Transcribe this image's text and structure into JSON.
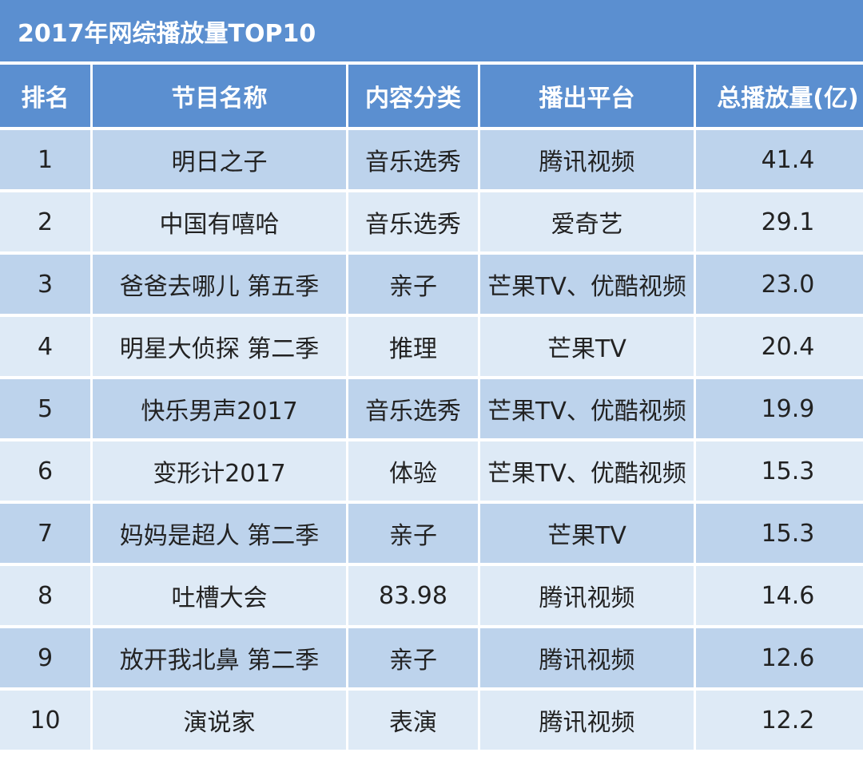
{
  "title": "2017年网综播放量TOP10",
  "chart_data": {
    "type": "table",
    "title": "2017年网综播放量TOP10",
    "columns": [
      "排名",
      "节目名称",
      "内容分类",
      "播出平台",
      "总播放量(亿)"
    ],
    "rows": [
      [
        "1",
        "明日之子",
        "音乐选秀",
        "腾讯视频",
        "41.4"
      ],
      [
        "2",
        "中国有嘻哈",
        "音乐选秀",
        "爱奇艺",
        "29.1"
      ],
      [
        "3",
        "爸爸去哪儿 第五季",
        "亲子",
        "芒果TV、优酷视频",
        "23.0"
      ],
      [
        "4",
        "明星大侦探 第二季",
        "推理",
        "芒果TV",
        "20.4"
      ],
      [
        "5",
        "快乐男声2017",
        "音乐选秀",
        "芒果TV、优酷视频",
        "19.9"
      ],
      [
        "6",
        "变形计2017",
        "体验",
        "芒果TV、优酷视频",
        "15.3"
      ],
      [
        "7",
        "妈妈是超人 第二季",
        "亲子",
        "芒果TV",
        "15.3"
      ],
      [
        "8",
        "吐槽大会",
        "83.98",
        "腾讯视频",
        "14.6"
      ],
      [
        "9",
        "放开我北鼻 第二季",
        "亲子",
        "腾讯视频",
        "12.6"
      ],
      [
        "10",
        "演说家",
        "表演",
        "腾讯视频",
        "12.2"
      ]
    ]
  },
  "colors": {
    "header": "#5b8fd0",
    "row_odd": "#bdd3ec",
    "row_even": "#deeaf6"
  }
}
